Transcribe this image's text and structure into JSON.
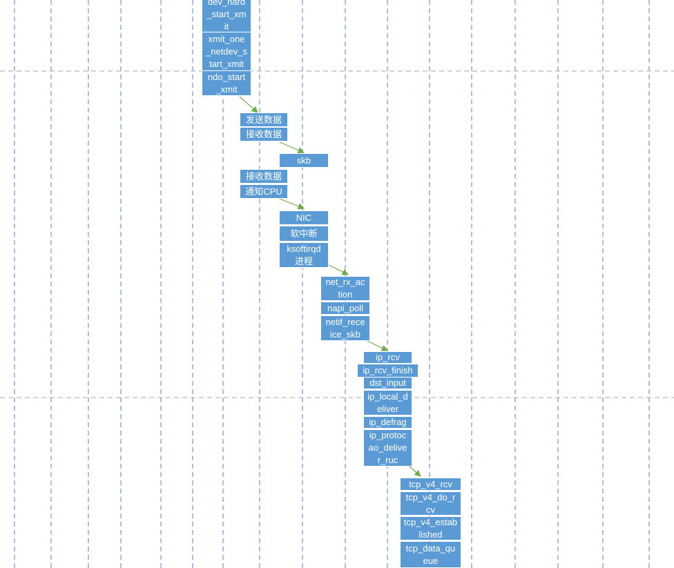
{
  "colors": {
    "box_fill": "#5b9bd5",
    "box_text": "#ffffff",
    "arrow": "#70ad47",
    "guide": "#5b7fbf",
    "separator": "#a6a6a6"
  },
  "groups": [
    {
      "id": "xmit",
      "items": [
        "dev_hard\n_start_xm\nit",
        "xmit_one\n_netdev_s\ntart_xmit",
        "ndo_start\n_xmit"
      ]
    },
    {
      "id": "send-recv",
      "items": [
        "发送数据",
        "接收数据"
      ]
    },
    {
      "id": "skb",
      "items": [
        "skb"
      ]
    },
    {
      "id": "recv-notify",
      "items": [
        "接收数据",
        "通知CPU"
      ]
    },
    {
      "id": "nic",
      "items": [
        "NIC",
        "软中断",
        "ksoftirqd\n进程"
      ]
    },
    {
      "id": "net-rx",
      "items": [
        "net_rx_ac\ntion",
        "napi_poll",
        "netif_rece\nice_skb"
      ]
    },
    {
      "id": "ip",
      "items": [
        "ip_rcv",
        "ip_rcv_finish",
        "dst_input",
        "ip_local_d\neliver",
        "ip_defrag",
        "ip_protoc\nao_delive\nr_ruc"
      ]
    },
    {
      "id": "tcp",
      "items": [
        "tcp_v4_rcv",
        "tcp_v4_do_r\ncv",
        "tcp_v4_estab\nlished",
        "tcp_data_qu\neue"
      ]
    }
  ]
}
